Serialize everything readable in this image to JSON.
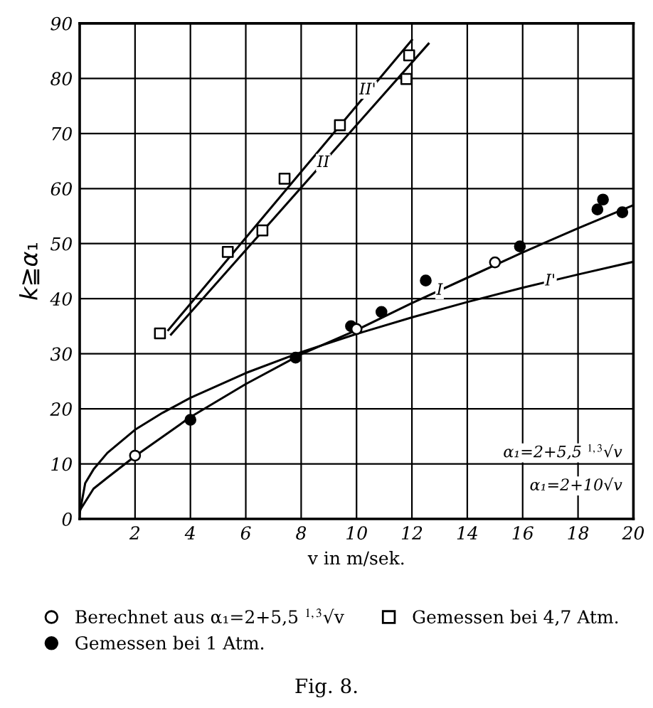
{
  "chart_data": {
    "type": "scatter",
    "xlabel": "v in m/sek.",
    "ylabel": "k≧α₁",
    "xlim": [
      0,
      20
    ],
    "ylim": [
      0,
      90
    ],
    "xticks": [
      {
        "value": 0,
        "label": null
      },
      2,
      4,
      6,
      8,
      10,
      12,
      14,
      16,
      18,
      20
    ],
    "yticks": [
      0,
      10,
      20,
      30,
      40,
      50,
      60,
      70,
      80,
      90
    ],
    "grid": true,
    "legend": "bottom",
    "series": [
      {
        "name": "Berechnet aus α₁=2+5,5 $^{1,3}$√v",
        "marker": "circle",
        "color": "#ffffff",
        "x": [
          2,
          10,
          15
        ],
        "values": [
          11.5,
          34.5,
          46.6
        ]
      },
      {
        "name": "Gemessen bei 1 Atm.",
        "marker": "circle",
        "color": "#000000",
        "x": [
          4,
          7.8,
          9.8,
          10.9,
          12.5,
          15.9,
          18.7,
          18.9,
          19.6
        ],
        "values": [
          18,
          29.3,
          35,
          37.6,
          43.3,
          49.5,
          56.2,
          58,
          55.7
        ]
      },
      {
        "name": "Gemessen bei 4,7 Atm.",
        "marker": "square",
        "color": "#ffffff",
        "x": [
          2.9,
          5.35,
          6.6,
          7.4,
          9.4,
          11.9,
          11.8
        ],
        "values": [
          33.7,
          48.5,
          52.4,
          61.8,
          71.5,
          84.2,
          79.9
        ]
      },
      {
        "type": "line",
        "marker": "none",
        "color": "#000000",
        "x": [
          3.2,
          12.0
        ],
        "values": [
          34.3,
          87
        ]
      },
      {
        "type": "line",
        "marker": "none",
        "color": "#000000",
        "x": [
          3.3,
          12.6
        ],
        "values": [
          33.5,
          86.3
        ]
      },
      {
        "type": "line",
        "marker": "none",
        "color": "#000000",
        "x": [
          0,
          0.5,
          1,
          2,
          4,
          6,
          8,
          10,
          12,
          14,
          16,
          18,
          20
        ],
        "values": [
          1.5,
          5.5,
          7.5,
          11.4,
          18.5,
          24.5,
          29.9,
          34.3,
          39.2,
          43.8,
          48.4,
          52.8,
          57
        ]
      },
      {
        "type": "line",
        "marker": "none",
        "color": "#000000",
        "x": [
          0,
          0.2,
          0.5,
          1,
          2,
          3,
          4,
          6,
          8,
          10,
          12,
          14,
          16,
          18,
          20
        ],
        "values": [
          1,
          6.5,
          9,
          12,
          16.2,
          19.3,
          22,
          26.5,
          30.3,
          33.6,
          36.6,
          39.4,
          42,
          44.4,
          46.7
        ]
      }
    ],
    "annotations": [
      {
        "text": "II'",
        "x": 10.4,
        "y": 77.9
      },
      {
        "text": "II",
        "x": 8.8,
        "y": 64.7
      },
      {
        "text": "I",
        "x": 13,
        "y": 41.5
      },
      {
        "text": "I'",
        "x": 17,
        "y": 43.2
      },
      "α₁=2+5,5 $^{1,3}$√v",
      "α₁=2+10√v",
      "Fig. 8."
    ]
  }
}
